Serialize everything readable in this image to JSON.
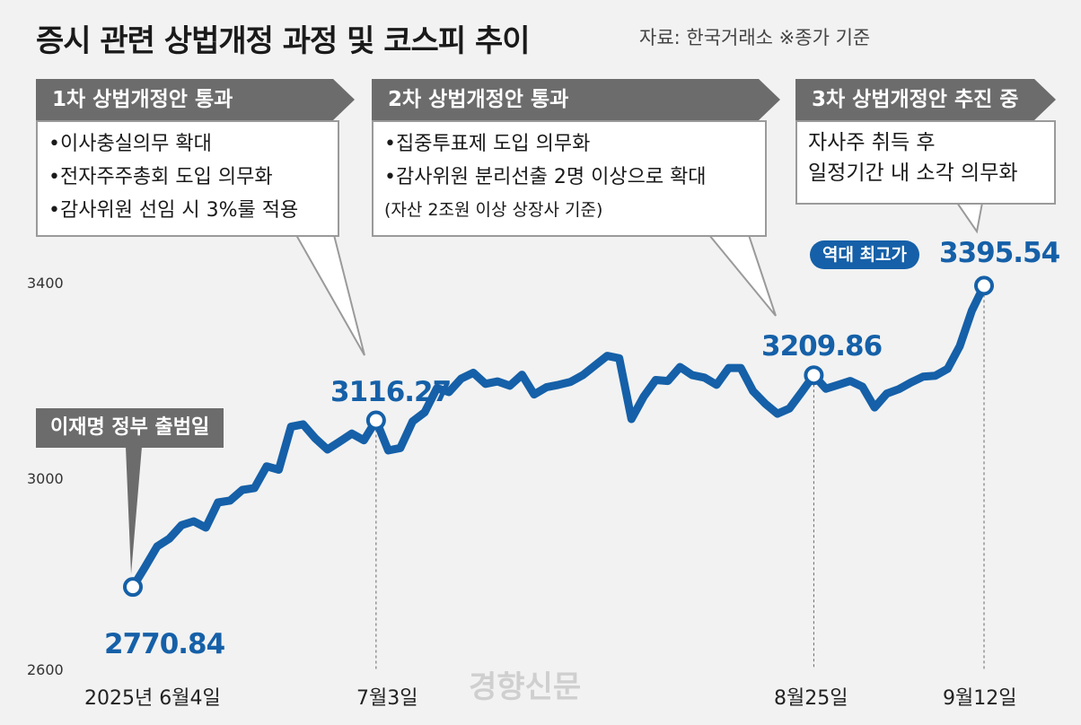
{
  "header": {
    "title": "증시 관련 상법개정 과정 및 코스피 추이",
    "source": "자료: 한국거래소 ※종가 기준"
  },
  "boxes": [
    {
      "head": "1차 상법개정안 통과",
      "items": [
        "•이사충실의무 확대",
        "•전자주주총회 도입 의무화",
        "•감사위원 선임 시 3%룰 적용"
      ],
      "note": ""
    },
    {
      "head": "2차 상법개정안 통과",
      "items": [
        "•집중투표제 도입 의무화",
        "•감사위원 분리선출 2명 이상으로 확대"
      ],
      "note": "(자산 2조원 이상 상장사 기준)"
    },
    {
      "head": "3차 상법개정안 추진 중",
      "items": [
        "자사주 취득 후",
        "일정기간 내 소각 의무화"
      ],
      "note": ""
    }
  ],
  "start_label": "이재명 정부 출범일",
  "peak_badge": "역대 최고가",
  "watermark": "경향신문",
  "colors": {
    "line": "#1560a8",
    "background": "#f2f2f2",
    "box_head": "#6c6c6c"
  },
  "chart_data": {
    "type": "line",
    "title": "증시 관련 상법개정 과정 및 코스피 추이",
    "xlabel": "",
    "ylabel": "",
    "ylim": [
      2600,
      3400
    ],
    "yticks": [
      "3400",
      "3000",
      "2600"
    ],
    "xticks": [
      "2025년 6월4일",
      "7월3일",
      "8월25일",
      "9월12일"
    ],
    "grid": false,
    "series": [
      {
        "name": "코스피",
        "x": [
          "2025-06-04",
          "2025-06-05",
          "2025-06-09",
          "2025-06-10",
          "2025-06-11",
          "2025-06-12",
          "2025-06-13",
          "2025-06-16",
          "2025-06-17",
          "2025-06-18",
          "2025-06-19",
          "2025-06-20",
          "2025-06-23",
          "2025-06-24",
          "2025-06-25",
          "2025-06-26",
          "2025-06-27",
          "2025-06-30",
          "2025-07-01",
          "2025-07-02",
          "2025-07-03",
          "2025-07-04",
          "2025-07-07",
          "2025-07-08",
          "2025-07-09",
          "2025-07-10",
          "2025-07-11",
          "2025-07-14",
          "2025-07-15",
          "2025-07-16",
          "2025-07-17",
          "2025-07-18",
          "2025-07-21",
          "2025-07-22",
          "2025-07-23",
          "2025-07-24",
          "2025-07-25",
          "2025-07-28",
          "2025-07-29",
          "2025-07-30",
          "2025-07-31",
          "2025-08-01",
          "2025-08-04",
          "2025-08-05",
          "2025-08-06",
          "2025-08-07",
          "2025-08-08",
          "2025-08-11",
          "2025-08-12",
          "2025-08-13",
          "2025-08-14",
          "2025-08-18",
          "2025-08-19",
          "2025-08-20",
          "2025-08-21",
          "2025-08-22",
          "2025-08-25",
          "2025-08-26",
          "2025-08-27",
          "2025-08-28",
          "2025-08-29",
          "2025-09-01",
          "2025-09-02",
          "2025-09-03",
          "2025-09-04",
          "2025-09-05",
          "2025-09-08",
          "2025-09-09",
          "2025-09-10",
          "2025-09-11",
          "2025-09-12"
        ],
        "values": [
          2770.84,
          2812,
          2855,
          2871,
          2899,
          2907,
          2894,
          2946,
          2950,
          2972,
          2976,
          3021,
          3014,
          3103,
          3108,
          3079,
          3056,
          3072,
          3089,
          3075,
          3116.27,
          3054,
          3059,
          3114,
          3133,
          3183,
          3175,
          3203,
          3215,
          3192,
          3197,
          3188,
          3211,
          3170,
          3185,
          3190,
          3196,
          3210,
          3230,
          3250,
          3245,
          3119,
          3165,
          3200,
          3198,
          3227,
          3210,
          3205,
          3190,
          3225,
          3225,
          3177,
          3151,
          3130,
          3141,
          3175,
          3209.86,
          3182,
          3190,
          3198,
          3186,
          3143,
          3172,
          3181,
          3195,
          3207,
          3209,
          3223,
          3270,
          3344,
          3395.54
        ]
      }
    ],
    "annotations": [
      {
        "date": "2025-06-04",
        "value": 2770.84,
        "label": "2770.84"
      },
      {
        "date": "2025-07-03",
        "value": 3116.27,
        "label": "3116.27"
      },
      {
        "date": "2025-08-25",
        "value": 3209.86,
        "label": "3209.86"
      },
      {
        "date": "2025-09-12",
        "value": 3395.54,
        "label": "3395.54"
      }
    ]
  }
}
